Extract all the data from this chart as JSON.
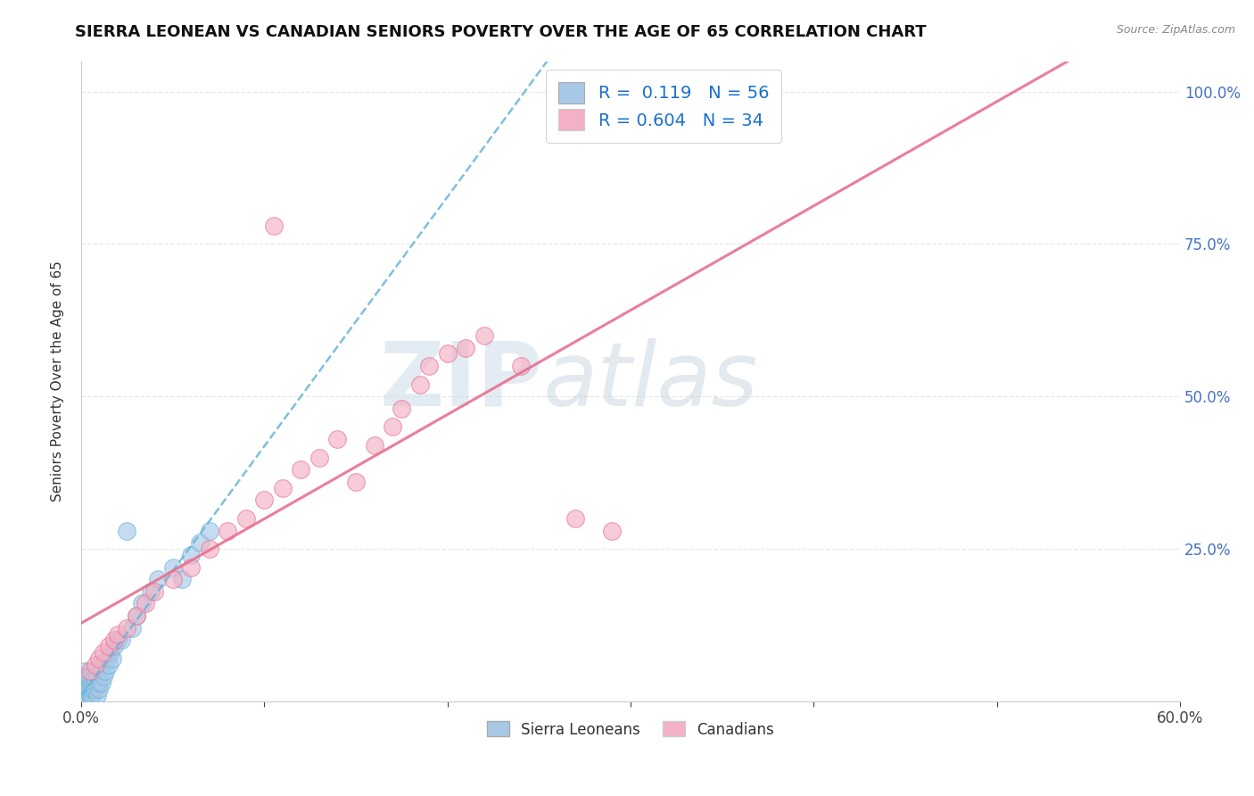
{
  "title": "SIERRA LEONEAN VS CANADIAN SENIORS POVERTY OVER THE AGE OF 65 CORRELATION CHART",
  "source": "Source: ZipAtlas.com",
  "ylabel": "Seniors Poverty Over the Age of 65",
  "xlim": [
    0.0,
    0.6
  ],
  "ylim": [
    0.0,
    1.05
  ],
  "xticks": [
    0.0,
    0.1,
    0.2,
    0.3,
    0.4,
    0.5,
    0.6
  ],
  "xticklabels": [
    "0.0%",
    "",
    "",
    "",
    "",
    "",
    "60.0%"
  ],
  "yticks": [
    0.0,
    0.25,
    0.5,
    0.75,
    1.0
  ],
  "yticklabels": [
    "",
    "25.0%",
    "50.0%",
    "75.0%",
    "100.0%"
  ],
  "sierra_x": [
    0.001,
    0.001,
    0.002,
    0.002,
    0.002,
    0.002,
    0.003,
    0.003,
    0.003,
    0.003,
    0.003,
    0.004,
    0.004,
    0.004,
    0.004,
    0.005,
    0.005,
    0.005,
    0.005,
    0.006,
    0.006,
    0.006,
    0.007,
    0.007,
    0.007,
    0.008,
    0.008,
    0.008,
    0.009,
    0.009,
    0.01,
    0.01,
    0.01,
    0.011,
    0.011,
    0.012,
    0.012,
    0.013,
    0.014,
    0.015,
    0.016,
    0.017,
    0.018,
    0.02,
    0.022,
    0.025,
    0.028,
    0.03,
    0.033,
    0.038,
    0.042,
    0.05,
    0.055,
    0.06,
    0.065,
    0.07
  ],
  "sierra_y": [
    0.02,
    0.03,
    0.01,
    0.04,
    0.02,
    0.05,
    0.01,
    0.02,
    0.03,
    0.04,
    0.01,
    0.02,
    0.03,
    0.02,
    0.04,
    0.01,
    0.02,
    0.03,
    0.04,
    0.01,
    0.02,
    0.03,
    0.02,
    0.03,
    0.04,
    0.02,
    0.03,
    0.05,
    0.01,
    0.04,
    0.02,
    0.03,
    0.06,
    0.03,
    0.05,
    0.04,
    0.06,
    0.05,
    0.07,
    0.06,
    0.08,
    0.07,
    0.09,
    0.1,
    0.1,
    0.28,
    0.12,
    0.14,
    0.16,
    0.18,
    0.2,
    0.22,
    0.2,
    0.24,
    0.26,
    0.28
  ],
  "canadian_x": [
    0.005,
    0.008,
    0.01,
    0.012,
    0.015,
    0.018,
    0.02,
    0.025,
    0.03,
    0.035,
    0.04,
    0.05,
    0.06,
    0.07,
    0.08,
    0.09,
    0.1,
    0.105,
    0.11,
    0.12,
    0.13,
    0.14,
    0.15,
    0.16,
    0.17,
    0.175,
    0.185,
    0.19,
    0.2,
    0.21,
    0.22,
    0.24,
    0.27,
    0.29
  ],
  "canadian_y": [
    0.05,
    0.06,
    0.07,
    0.08,
    0.09,
    0.1,
    0.11,
    0.12,
    0.14,
    0.16,
    0.18,
    0.2,
    0.22,
    0.25,
    0.28,
    0.3,
    0.33,
    0.78,
    0.35,
    0.38,
    0.4,
    0.43,
    0.36,
    0.42,
    0.45,
    0.48,
    0.52,
    0.55,
    0.57,
    0.58,
    0.6,
    0.55,
    0.3,
    0.28
  ],
  "sierra_color": "#a8c8e8",
  "canadian_color": "#f4b0c4",
  "sierra_line_color": "#6ab4d8",
  "canadian_line_color": "#e87090",
  "sierra_R": 0.119,
  "sierra_N": 56,
  "canadian_R": 0.604,
  "canadian_N": 34,
  "watermark_zip": "ZIP",
  "watermark_atlas": "atlas",
  "background_color": "#ffffff",
  "grid_color": "#e8e8e8",
  "grid_style": "--"
}
